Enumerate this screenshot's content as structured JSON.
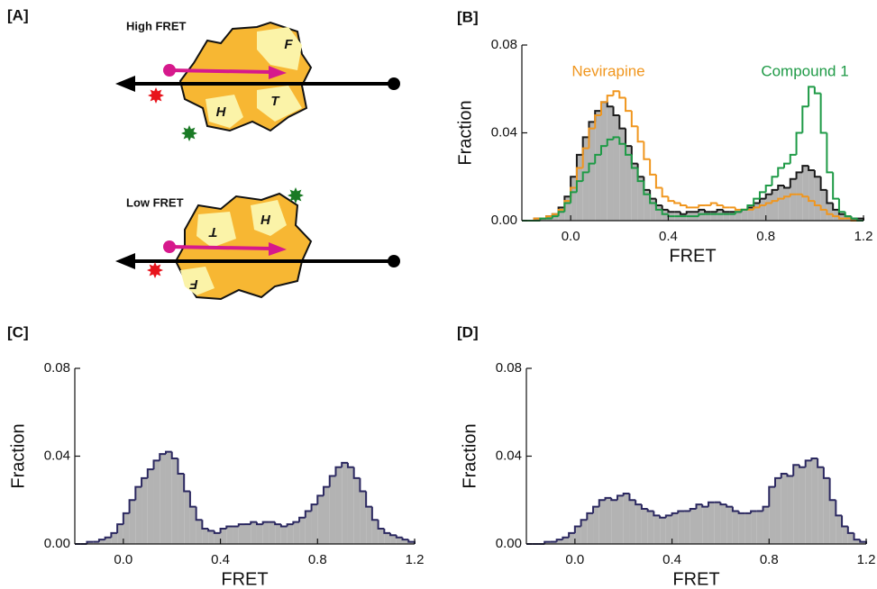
{
  "panel_a": {
    "label": "[A]",
    "states": [
      {
        "title": "High FRET",
        "domains": [
          "F",
          "T",
          "H"
        ]
      },
      {
        "title": "Low FRET",
        "domains": [
          "T",
          "H",
          "F"
        ]
      }
    ]
  },
  "chart_data": [
    {
      "type": "histogram",
      "panel_label": "[B]",
      "xlabel": "FRET",
      "ylabel": "Fraction",
      "bins": [
        -0.2,
        -0.175,
        -0.15,
        -0.125,
        -0.1,
        -0.075,
        -0.05,
        -0.025,
        0,
        0.025,
        0.05,
        0.075,
        0.1,
        0.125,
        0.15,
        0.175,
        0.2,
        0.225,
        0.25,
        0.275,
        0.3,
        0.325,
        0.35,
        0.375,
        0.4,
        0.425,
        0.45,
        0.475,
        0.5,
        0.525,
        0.55,
        0.575,
        0.6,
        0.625,
        0.65,
        0.675,
        0.7,
        0.725,
        0.75,
        0.775,
        0.8,
        0.825,
        0.85,
        0.875,
        0.9,
        0.925,
        0.95,
        0.975,
        1,
        1.025,
        1.05,
        1.075,
        1.1,
        1.125,
        1.15,
        1.175,
        1.2
      ],
      "series": [
        {
          "color": "#1a1a1a",
          "fill": "#b3b3b3",
          "values": [
            0,
            0,
            0.001,
            0.001,
            0.002,
            0.003,
            0.006,
            0.011,
            0.02,
            0.03,
            0.038,
            0.045,
            0.05,
            0.054,
            0.052,
            0.048,
            0.042,
            0.034,
            0.026,
            0.02,
            0.014,
            0.01,
            0.007,
            0.005,
            0.004,
            0.004,
            0.003,
            0.004,
            0.004,
            0.005,
            0.004,
            0.004,
            0.005,
            0.004,
            0.004,
            0.004,
            0.005,
            0.006,
            0.008,
            0.01,
            0.012,
            0.014,
            0.016,
            0.015,
            0.019,
            0.022,
            0.025,
            0.023,
            0.02,
            0.014,
            0.008,
            0.005,
            0.003,
            0.002,
            0.001,
            0.001
          ]
        },
        {
          "name": "Nevirapine",
          "color": "#f0961e",
          "values": [
            0,
            0,
            0.001,
            0.001,
            0.002,
            0.003,
            0.005,
            0.009,
            0.015,
            0.024,
            0.033,
            0.042,
            0.048,
            0.054,
            0.057,
            0.059,
            0.056,
            0.05,
            0.043,
            0.036,
            0.028,
            0.021,
            0.015,
            0.011,
            0.009,
            0.008,
            0.007,
            0.006,
            0.006,
            0.007,
            0.007,
            0.008,
            0.007,
            0.006,
            0.006,
            0.005,
            0.005,
            0.005,
            0.006,
            0.007,
            0.008,
            0.009,
            0.01,
            0.011,
            0.012,
            0.012,
            0.011,
            0.009,
            0.007,
            0.005,
            0.003,
            0.002,
            0.001,
            0.001,
            0,
            0
          ]
        },
        {
          "name": "Compound 1",
          "color": "#1e9a46",
          "values": [
            0,
            0,
            0,
            0.001,
            0.001,
            0.002,
            0.004,
            0.008,
            0.013,
            0.018,
            0.022,
            0.026,
            0.03,
            0.034,
            0.037,
            0.038,
            0.035,
            0.03,
            0.024,
            0.018,
            0.012,
            0.008,
            0.005,
            0.003,
            0.002,
            0.002,
            0.002,
            0.002,
            0.002,
            0.003,
            0.003,
            0.003,
            0.003,
            0.003,
            0.003,
            0.004,
            0.005,
            0.007,
            0.01,
            0.013,
            0.016,
            0.02,
            0.024,
            0.026,
            0.03,
            0.04,
            0.052,
            0.061,
            0.058,
            0.04,
            0.022,
            0.01,
            0.004,
            0.002,
            0.001,
            0
          ]
        }
      ],
      "xlim": [
        -0.2,
        1.2
      ],
      "ylim": [
        0,
        0.08
      ],
      "xticks": [
        {
          "value": 0,
          "label": "0.0"
        },
        0.4,
        0.8,
        1.2
      ],
      "yticks": [
        {
          "value": 0,
          "label": "0.00"
        },
        0.04,
        0.08
      ]
    },
    {
      "type": "histogram",
      "panel_label": "[C]",
      "xlabel": "FRET",
      "ylabel": "Fraction",
      "bins": [
        -0.2,
        -0.175,
        -0.15,
        -0.125,
        -0.1,
        -0.075,
        -0.05,
        -0.025,
        0,
        0.025,
        0.05,
        0.075,
        0.1,
        0.125,
        0.15,
        0.175,
        0.2,
        0.225,
        0.25,
        0.275,
        0.3,
        0.325,
        0.35,
        0.375,
        0.4,
        0.425,
        0.45,
        0.475,
        0.5,
        0.525,
        0.55,
        0.575,
        0.6,
        0.625,
        0.65,
        0.675,
        0.7,
        0.725,
        0.75,
        0.775,
        0.8,
        0.825,
        0.85,
        0.875,
        0.9,
        0.925,
        0.95,
        0.975,
        1,
        1.025,
        1.05,
        1.075,
        1.1,
        1.125,
        1.15,
        1.175,
        1.2
      ],
      "series": [
        {
          "color": "#2b2860",
          "fill": "#b3b3b3",
          "values": [
            0,
            0,
            0.001,
            0.001,
            0.002,
            0.003,
            0.005,
            0.009,
            0.014,
            0.02,
            0.026,
            0.03,
            0.034,
            0.038,
            0.041,
            0.042,
            0.039,
            0.032,
            0.024,
            0.017,
            0.011,
            0.007,
            0.006,
            0.005,
            0.007,
            0.008,
            0.008,
            0.009,
            0.009,
            0.01,
            0.009,
            0.01,
            0.01,
            0.009,
            0.008,
            0.009,
            0.01,
            0.012,
            0.015,
            0.018,
            0.022,
            0.026,
            0.031,
            0.035,
            0.037,
            0.035,
            0.03,
            0.024,
            0.017,
            0.011,
            0.007,
            0.005,
            0.004,
            0.003,
            0.002,
            0.001
          ]
        }
      ],
      "xlim": [
        -0.2,
        1.2
      ],
      "ylim": [
        0,
        0.08
      ],
      "xticks": [
        {
          "value": 0,
          "label": "0.0"
        },
        0.4,
        0.8,
        1.2
      ],
      "yticks": [
        {
          "value": 0,
          "label": "0.00"
        },
        0.04,
        0.08
      ]
    },
    {
      "type": "histogram",
      "panel_label": "[D]",
      "xlabel": "FRET",
      "ylabel": "Fraction",
      "bins": [
        -0.2,
        -0.175,
        -0.15,
        -0.125,
        -0.1,
        -0.075,
        -0.05,
        -0.025,
        0,
        0.025,
        0.05,
        0.075,
        0.1,
        0.125,
        0.15,
        0.175,
        0.2,
        0.225,
        0.25,
        0.275,
        0.3,
        0.325,
        0.35,
        0.375,
        0.4,
        0.425,
        0.45,
        0.475,
        0.5,
        0.525,
        0.55,
        0.575,
        0.6,
        0.625,
        0.65,
        0.675,
        0.7,
        0.725,
        0.75,
        0.775,
        0.8,
        0.825,
        0.85,
        0.875,
        0.9,
        0.925,
        0.95,
        0.975,
        1,
        1.025,
        1.05,
        1.075,
        1.1,
        1.125,
        1.15,
        1.175,
        1.2
      ],
      "series": [
        {
          "color": "#2b2860",
          "fill": "#b3b3b3",
          "values": [
            0,
            0,
            0,
            0.001,
            0.001,
            0.002,
            0.003,
            0.005,
            0.008,
            0.011,
            0.014,
            0.017,
            0.02,
            0.021,
            0.02,
            0.022,
            0.023,
            0.02,
            0.018,
            0.016,
            0.015,
            0.013,
            0.012,
            0.013,
            0.014,
            0.015,
            0.015,
            0.016,
            0.018,
            0.017,
            0.019,
            0.019,
            0.018,
            0.017,
            0.015,
            0.014,
            0.014,
            0.015,
            0.015,
            0.017,
            0.026,
            0.03,
            0.032,
            0.031,
            0.036,
            0.035,
            0.038,
            0.039,
            0.035,
            0.03,
            0.02,
            0.013,
            0.008,
            0.005,
            0.002,
            0.001
          ]
        }
      ],
      "xlim": [
        -0.2,
        1.2
      ],
      "ylim": [
        0,
        0.08
      ],
      "xticks": [
        {
          "value": 0,
          "label": "0.0"
        },
        0.4,
        0.8,
        1.2
      ],
      "yticks": [
        {
          "value": 0,
          "label": "0.00"
        },
        0.04,
        0.08
      ]
    }
  ]
}
